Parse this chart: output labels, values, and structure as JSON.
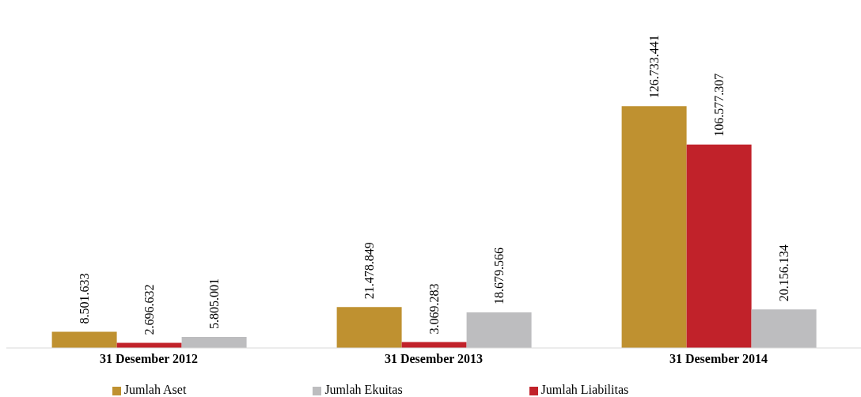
{
  "chart_data": {
    "type": "bar",
    "categories": [
      "31 Desember 2012",
      "31 Desember 2013",
      "31 Desember 2014"
    ],
    "series": [
      {
        "name": "Jumlah Aset",
        "color": "#bf9130",
        "values": [
          8501633,
          21478849,
          126733441
        ],
        "value_labels": [
          "8.501.633",
          "21.478.849",
          "126.733.441"
        ]
      },
      {
        "name": "Jumlah Liabilitas",
        "color": "#c1222a",
        "values": [
          2696632,
          3069283,
          106577307
        ],
        "value_labels": [
          "2.696.632",
          "3.069.283",
          "106.577.307"
        ]
      },
      {
        "name": "Jumlah Ekuitas",
        "color": "#bdbdbf",
        "values": [
          5805001,
          18679566,
          20156134
        ],
        "value_labels": [
          "5.805.001",
          "18.679.566",
          "20.156.134"
        ]
      }
    ],
    "legend": "bottom"
  }
}
